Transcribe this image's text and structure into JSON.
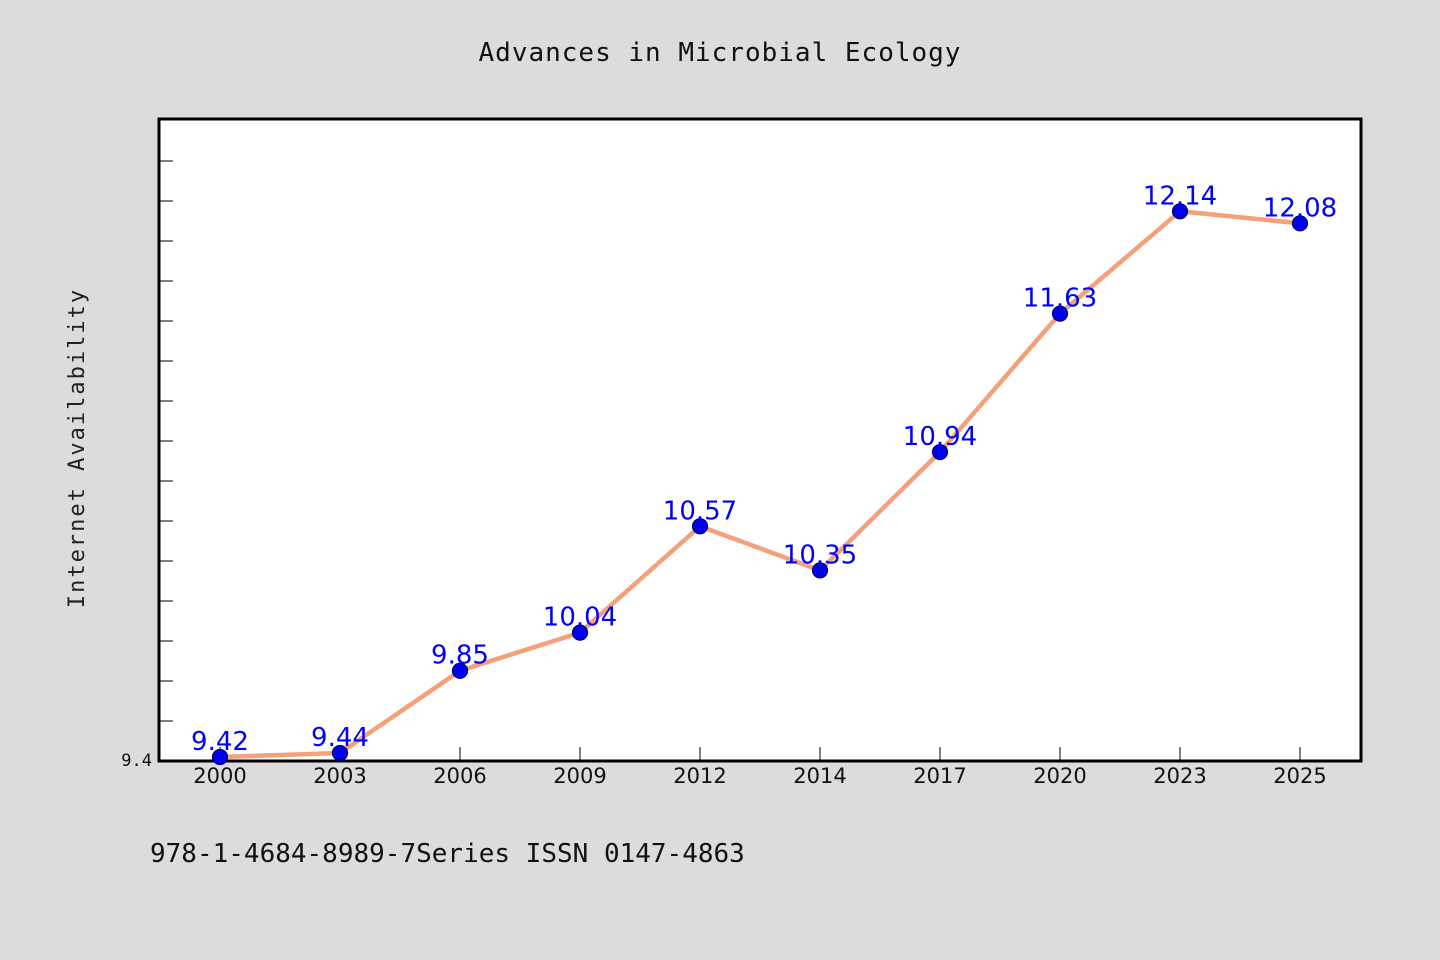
{
  "chart_data": {
    "type": "line",
    "title": "Advances in Microbial Ecology",
    "ylabel": "Internet Availability",
    "xlabel": "",
    "categories": [
      "2000",
      "2003",
      "2006",
      "2009",
      "2012",
      "2014",
      "2017",
      "2020",
      "2023",
      "2025"
    ],
    "series": [
      {
        "values": [
          9.42,
          9.44,
          9.85,
          10.04,
          10.57,
          10.35,
          10.94,
          11.63,
          12.14,
          12.08
        ],
        "labels": [
          "9.42",
          "9.44",
          "9.85",
          "10.04",
          "10.57",
          "10.35",
          "10.94",
          "11.63",
          "12.14",
          "12.08"
        ]
      }
    ],
    "ylim": [
      9.4,
      12.6
    ],
    "y_tick_labels": [
      "9.4"
    ],
    "grid": false,
    "colors": {
      "line": "#f4a07a",
      "marker": "#0000ee",
      "marker_edge": "#00006a",
      "label": "#0000ff",
      "plot_bg": "#ffffff",
      "figure_bg": "#dcdcdc"
    }
  },
  "footer": {
    "text": "978-1-4684-8989-7Series ISSN 0147-4863"
  }
}
